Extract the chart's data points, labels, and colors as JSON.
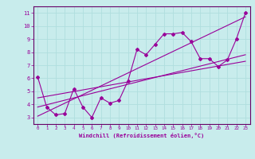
{
  "xlabel": "Windchill (Refroidissement éolien,°C)",
  "background_color": "#c8ecec",
  "grid_color": "#b0dede",
  "line_color": "#990099",
  "spine_color": "#660066",
  "xlim": [
    -0.5,
    23.5
  ],
  "ylim": [
    2.5,
    11.5
  ],
  "xticks": [
    0,
    1,
    2,
    3,
    4,
    5,
    6,
    7,
    8,
    9,
    10,
    11,
    12,
    13,
    14,
    15,
    16,
    17,
    18,
    19,
    20,
    21,
    22,
    23
  ],
  "yticks": [
    3,
    4,
    5,
    6,
    7,
    8,
    9,
    10,
    11
  ],
  "series1_x": [
    0,
    1,
    2,
    3,
    4,
    5,
    6,
    7,
    8,
    9,
    10,
    11,
    12,
    13,
    14,
    15,
    16,
    17,
    18,
    19,
    20,
    21,
    22,
    23
  ],
  "series1_y": [
    6.1,
    3.8,
    3.2,
    3.3,
    5.2,
    3.8,
    3.0,
    4.5,
    4.1,
    4.3,
    5.8,
    8.2,
    7.8,
    8.6,
    9.4,
    9.4,
    9.5,
    8.8,
    7.5,
    7.5,
    6.9,
    7.4,
    9.0,
    11.0
  ],
  "series2_x": [
    0,
    23
  ],
  "series2_y": [
    3.1,
    10.7
  ],
  "series3_x": [
    0,
    23
  ],
  "series3_y": [
    3.8,
    7.8
  ],
  "series4_x": [
    0,
    23
  ],
  "series4_y": [
    4.5,
    7.3
  ]
}
